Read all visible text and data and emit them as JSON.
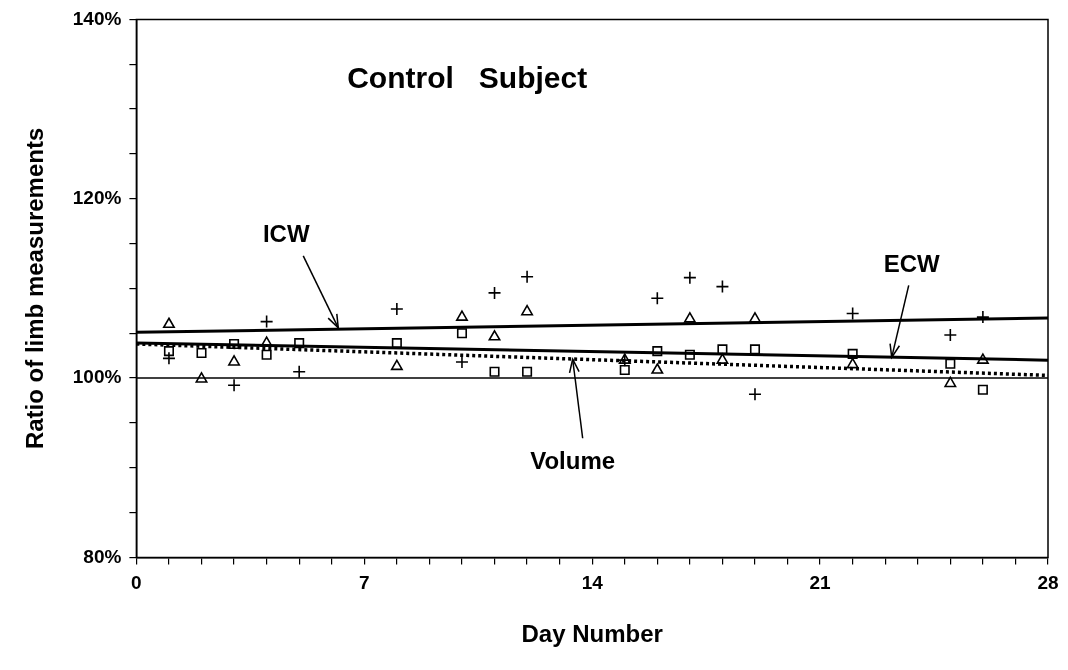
{
  "chart_data": {
    "type": "scatter",
    "title": "Control   Subject",
    "xlabel": "Day Number",
    "ylabel": "Ratio of limb measurements",
    "xlim": [
      0,
      28
    ],
    "xticks": [
      0,
      {
        "value": 1,
        "label": null
      },
      {
        "value": 2,
        "label": null
      },
      {
        "value": 3,
        "label": null
      },
      {
        "value": 4,
        "label": null
      },
      {
        "value": 5,
        "label": null
      },
      {
        "value": 6,
        "label": null
      },
      7,
      {
        "value": 8,
        "label": null
      },
      {
        "value": 9,
        "label": null
      },
      {
        "value": 10,
        "label": null
      },
      {
        "value": 11,
        "label": null
      },
      {
        "value": 12,
        "label": null
      },
      {
        "value": 13,
        "label": null
      },
      14,
      {
        "value": 15,
        "label": null
      },
      {
        "value": 16,
        "label": null
      },
      {
        "value": 17,
        "label": null
      },
      {
        "value": 18,
        "label": null
      },
      {
        "value": 19,
        "label": null
      },
      {
        "value": 20,
        "label": null
      },
      21,
      {
        "value": 22,
        "label": null
      },
      {
        "value": 23,
        "label": null
      },
      {
        "value": 24,
        "label": null
      },
      {
        "value": 25,
        "label": null
      },
      {
        "value": 26,
        "label": null
      },
      {
        "value": 27,
        "label": null
      },
      28
    ],
    "ylim": [
      80,
      140
    ],
    "yticks": [
      {
        "value": 80,
        "label": "80%"
      },
      {
        "value": 85,
        "label": null
      },
      {
        "value": 90,
        "label": null
      },
      {
        "value": 95,
        "label": null
      },
      {
        "value": 100,
        "label": "100%"
      },
      {
        "value": 105,
        "label": null
      },
      {
        "value": 110,
        "label": null
      },
      {
        "value": 115,
        "label": null
      },
      {
        "value": 120,
        "label": "120%"
      },
      {
        "value": 125,
        "label": null
      },
      {
        "value": 130,
        "label": null
      },
      {
        "value": 135,
        "label": null
      },
      {
        "value": 140,
        "label": "140%"
      }
    ],
    "grid": false,
    "legend": false,
    "series": [
      {
        "type": "scatter",
        "marker": "cross",
        "color": "#000000",
        "x": [
          1,
          3,
          4,
          5,
          8,
          10,
          11,
          12,
          15,
          16,
          17,
          18,
          19,
          22,
          25,
          26
        ],
        "values": [
          102.2,
          99.2,
          106.3,
          100.7,
          107.7,
          101.8,
          109.5,
          111.3,
          102.0,
          108.9,
          111.2,
          110.2,
          98.2,
          107.2,
          104.8,
          106.8
        ]
      },
      {
        "type": "scatter",
        "marker": "triangle",
        "color": "#000000",
        "x": [
          1,
          2,
          3,
          4,
          8,
          10,
          11,
          12,
          15,
          16,
          17,
          18,
          19,
          22,
          25,
          26
        ],
        "values": [
          106.0,
          99.9,
          101.8,
          103.9,
          101.3,
          106.8,
          104.6,
          107.4,
          102.0,
          100.9,
          106.6,
          102.0,
          106.6,
          101.5,
          99.4,
          102.0
        ]
      },
      {
        "type": "scatter",
        "marker": "square",
        "color": "#000000",
        "x": [
          1,
          2,
          3,
          4,
          5,
          8,
          10,
          11,
          12,
          15,
          16,
          17,
          18,
          19,
          22,
          25,
          26
        ],
        "values": [
          103.0,
          102.8,
          103.8,
          102.6,
          103.9,
          103.9,
          105.0,
          100.7,
          100.7,
          100.9,
          103.0,
          102.6,
          103.2,
          103.2,
          102.7,
          101.6,
          98.7
        ]
      },
      {
        "type": "line",
        "marker": "none",
        "line_style": "solid",
        "color": "#000000",
        "x": [
          0,
          28
        ],
        "values": [
          105.1,
          106.7
        ]
      },
      {
        "type": "line",
        "marker": "none",
        "line_style": "solid",
        "color": "#000000",
        "x": [
          0,
          28
        ],
        "values": [
          103.9,
          102.0
        ]
      },
      {
        "type": "line",
        "marker": "none",
        "line_style": "dotted",
        "color": "#000000",
        "x": [
          0,
          28
        ],
        "values": [
          103.8,
          100.3
        ]
      }
    ],
    "ref_lines": [
      {
        "axis": "y",
        "value": 100,
        "color": "#000000"
      }
    ],
    "annotations": [
      {
        "text": "ICW",
        "x": 6.2,
        "y": 105.6
      },
      {
        "text": "ECW",
        "x": 23.2,
        "y": 102.3
      },
      {
        "text": "Volume",
        "x": 13.4,
        "y": 102.1
      }
    ]
  }
}
